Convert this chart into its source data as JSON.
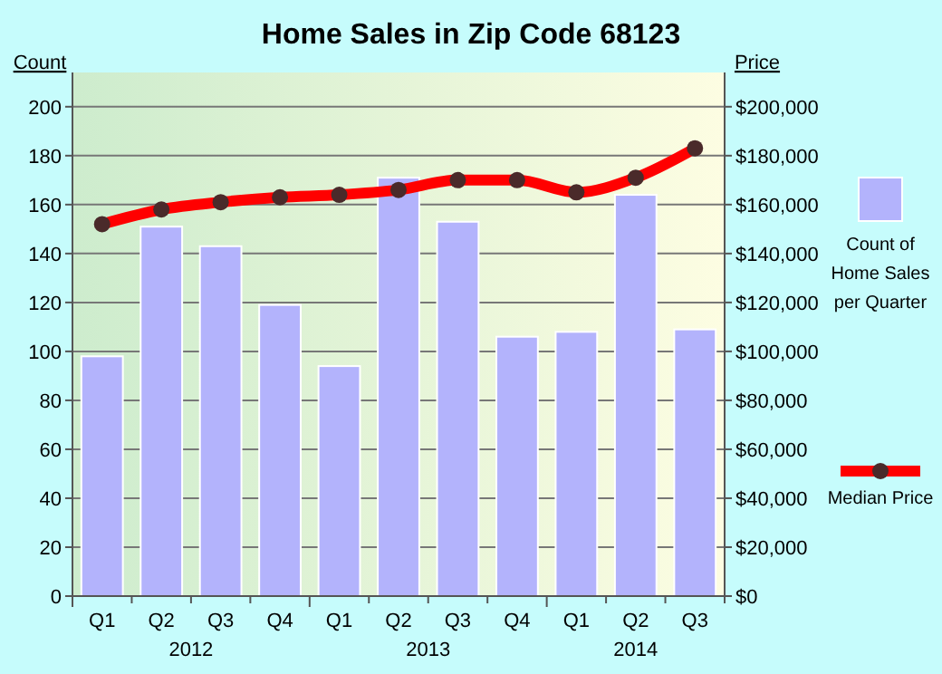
{
  "chart_data": {
    "type": "bar",
    "title": "Home Sales in Zip Code 68123",
    "ylabel": "Count",
    "y2label": "Price",
    "categories": [
      "Q1",
      "Q2",
      "Q3",
      "Q4",
      "Q1",
      "Q2",
      "Q3",
      "Q4",
      "Q1",
      "Q2",
      "Q3"
    ],
    "annotations": [
      "2012",
      "2013",
      "2014"
    ],
    "series": [
      {
        "name": "Count of Home Sales per Quarter",
        "color": "#b3b3fc",
        "values": [
          98,
          151,
          143,
          119,
          94,
          171,
          153,
          106,
          108,
          164,
          109
        ]
      },
      {
        "name": "Median Price",
        "type": "line",
        "axis": "y2",
        "color": "#ff0000",
        "values": [
          152000,
          158000,
          161000,
          163000,
          164000,
          166000,
          170000,
          170000,
          165000,
          171000,
          183000
        ]
      }
    ],
    "ylim": [
      0,
      214
    ],
    "yticks": [
      0,
      20,
      40,
      60,
      80,
      100,
      120,
      140,
      160,
      180,
      200
    ],
    "y2lim": [
      0,
      214000
    ],
    "y2ticks": [
      {
        "value": 0,
        "label": "$0"
      },
      {
        "value": 20000,
        "label": "$20,000"
      },
      {
        "value": 40000,
        "label": "$40,000"
      },
      {
        "value": 60000,
        "label": "$60,000"
      },
      {
        "value": 80000,
        "label": "$80,000"
      },
      {
        "value": 100000,
        "label": "$100,000"
      },
      {
        "value": 120000,
        "label": "$120,000"
      },
      {
        "value": 140000,
        "label": "$140,000"
      },
      {
        "value": 160000,
        "label": "$160,000"
      },
      {
        "value": 180000,
        "label": "$180,000"
      },
      {
        "value": 200000,
        "label": "$200,000"
      }
    ],
    "grid": "y",
    "legend": "right",
    "marker": "circle",
    "line_style": "solid"
  }
}
